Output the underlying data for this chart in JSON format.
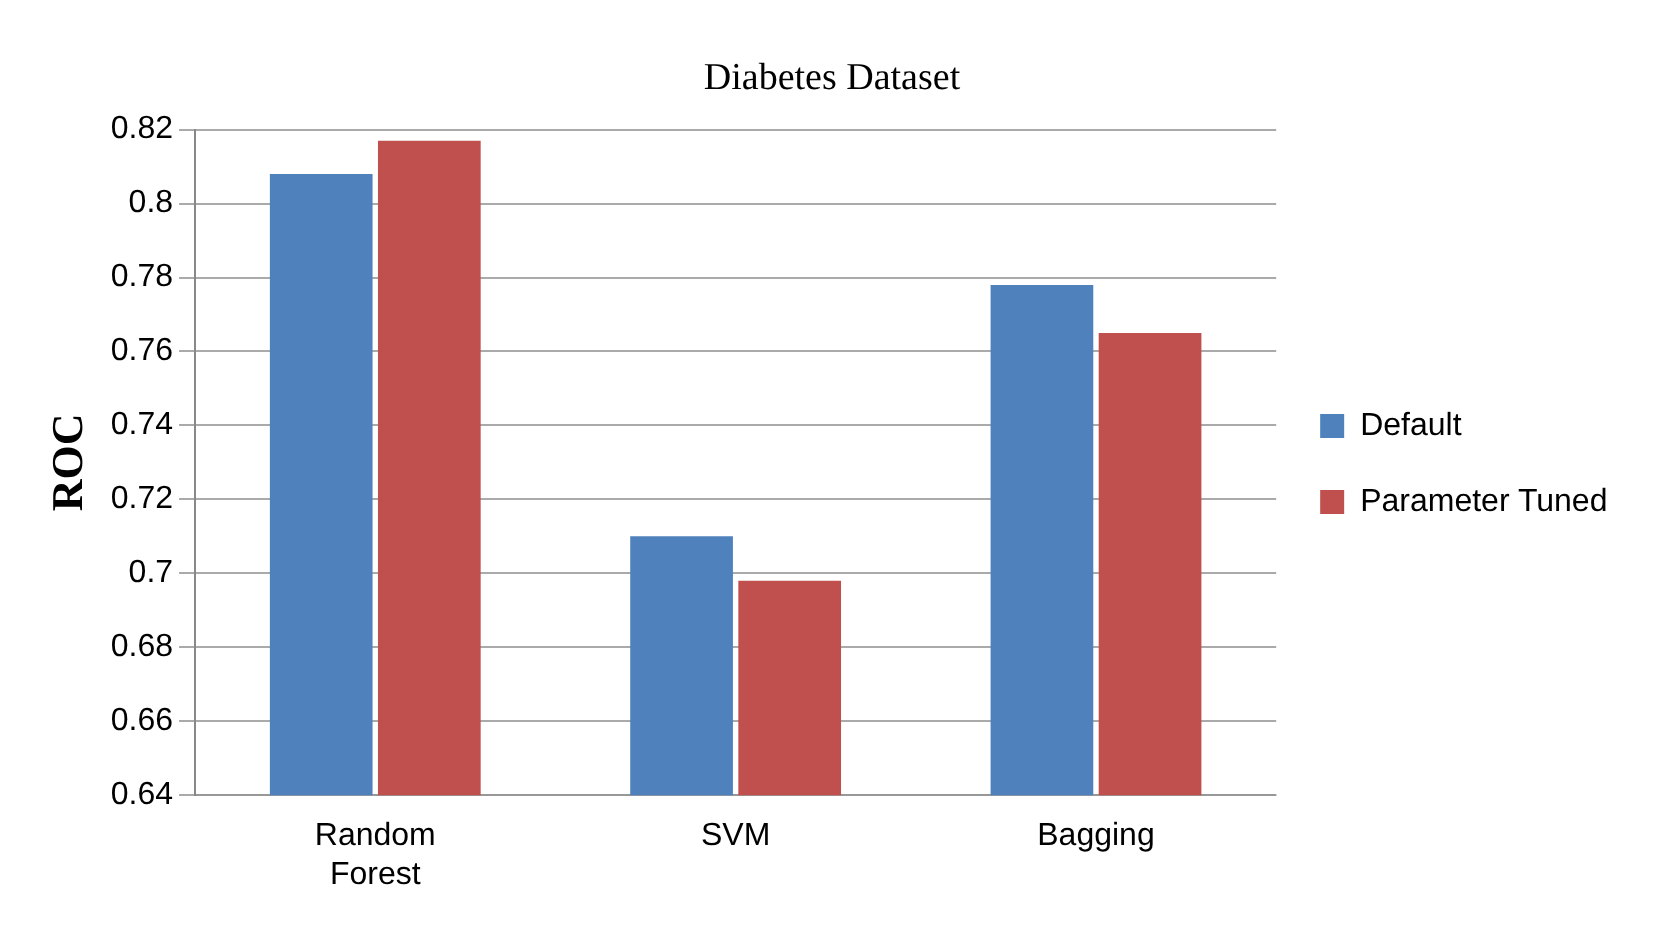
{
  "chart_data": {
    "type": "bar",
    "title": "Diabetes Dataset",
    "ylabel": "ROC",
    "categories": [
      "Random\nForest",
      "SVM",
      "Bagging"
    ],
    "series": [
      {
        "name": "Default",
        "color": "#4f81bd",
        "values": [
          0.808,
          0.71,
          0.778
        ]
      },
      {
        "name": "Parameter Tuned",
        "color": "#c0504d",
        "values": [
          0.817,
          0.698,
          0.765
        ]
      }
    ],
    "ylim": [
      0.64,
      0.82
    ],
    "yticks": [
      0.64,
      0.66,
      0.68,
      0.7,
      0.72,
      0.74,
      0.76,
      0.78,
      0.8,
      0.82
    ],
    "grid": "y",
    "legend": "right"
  }
}
